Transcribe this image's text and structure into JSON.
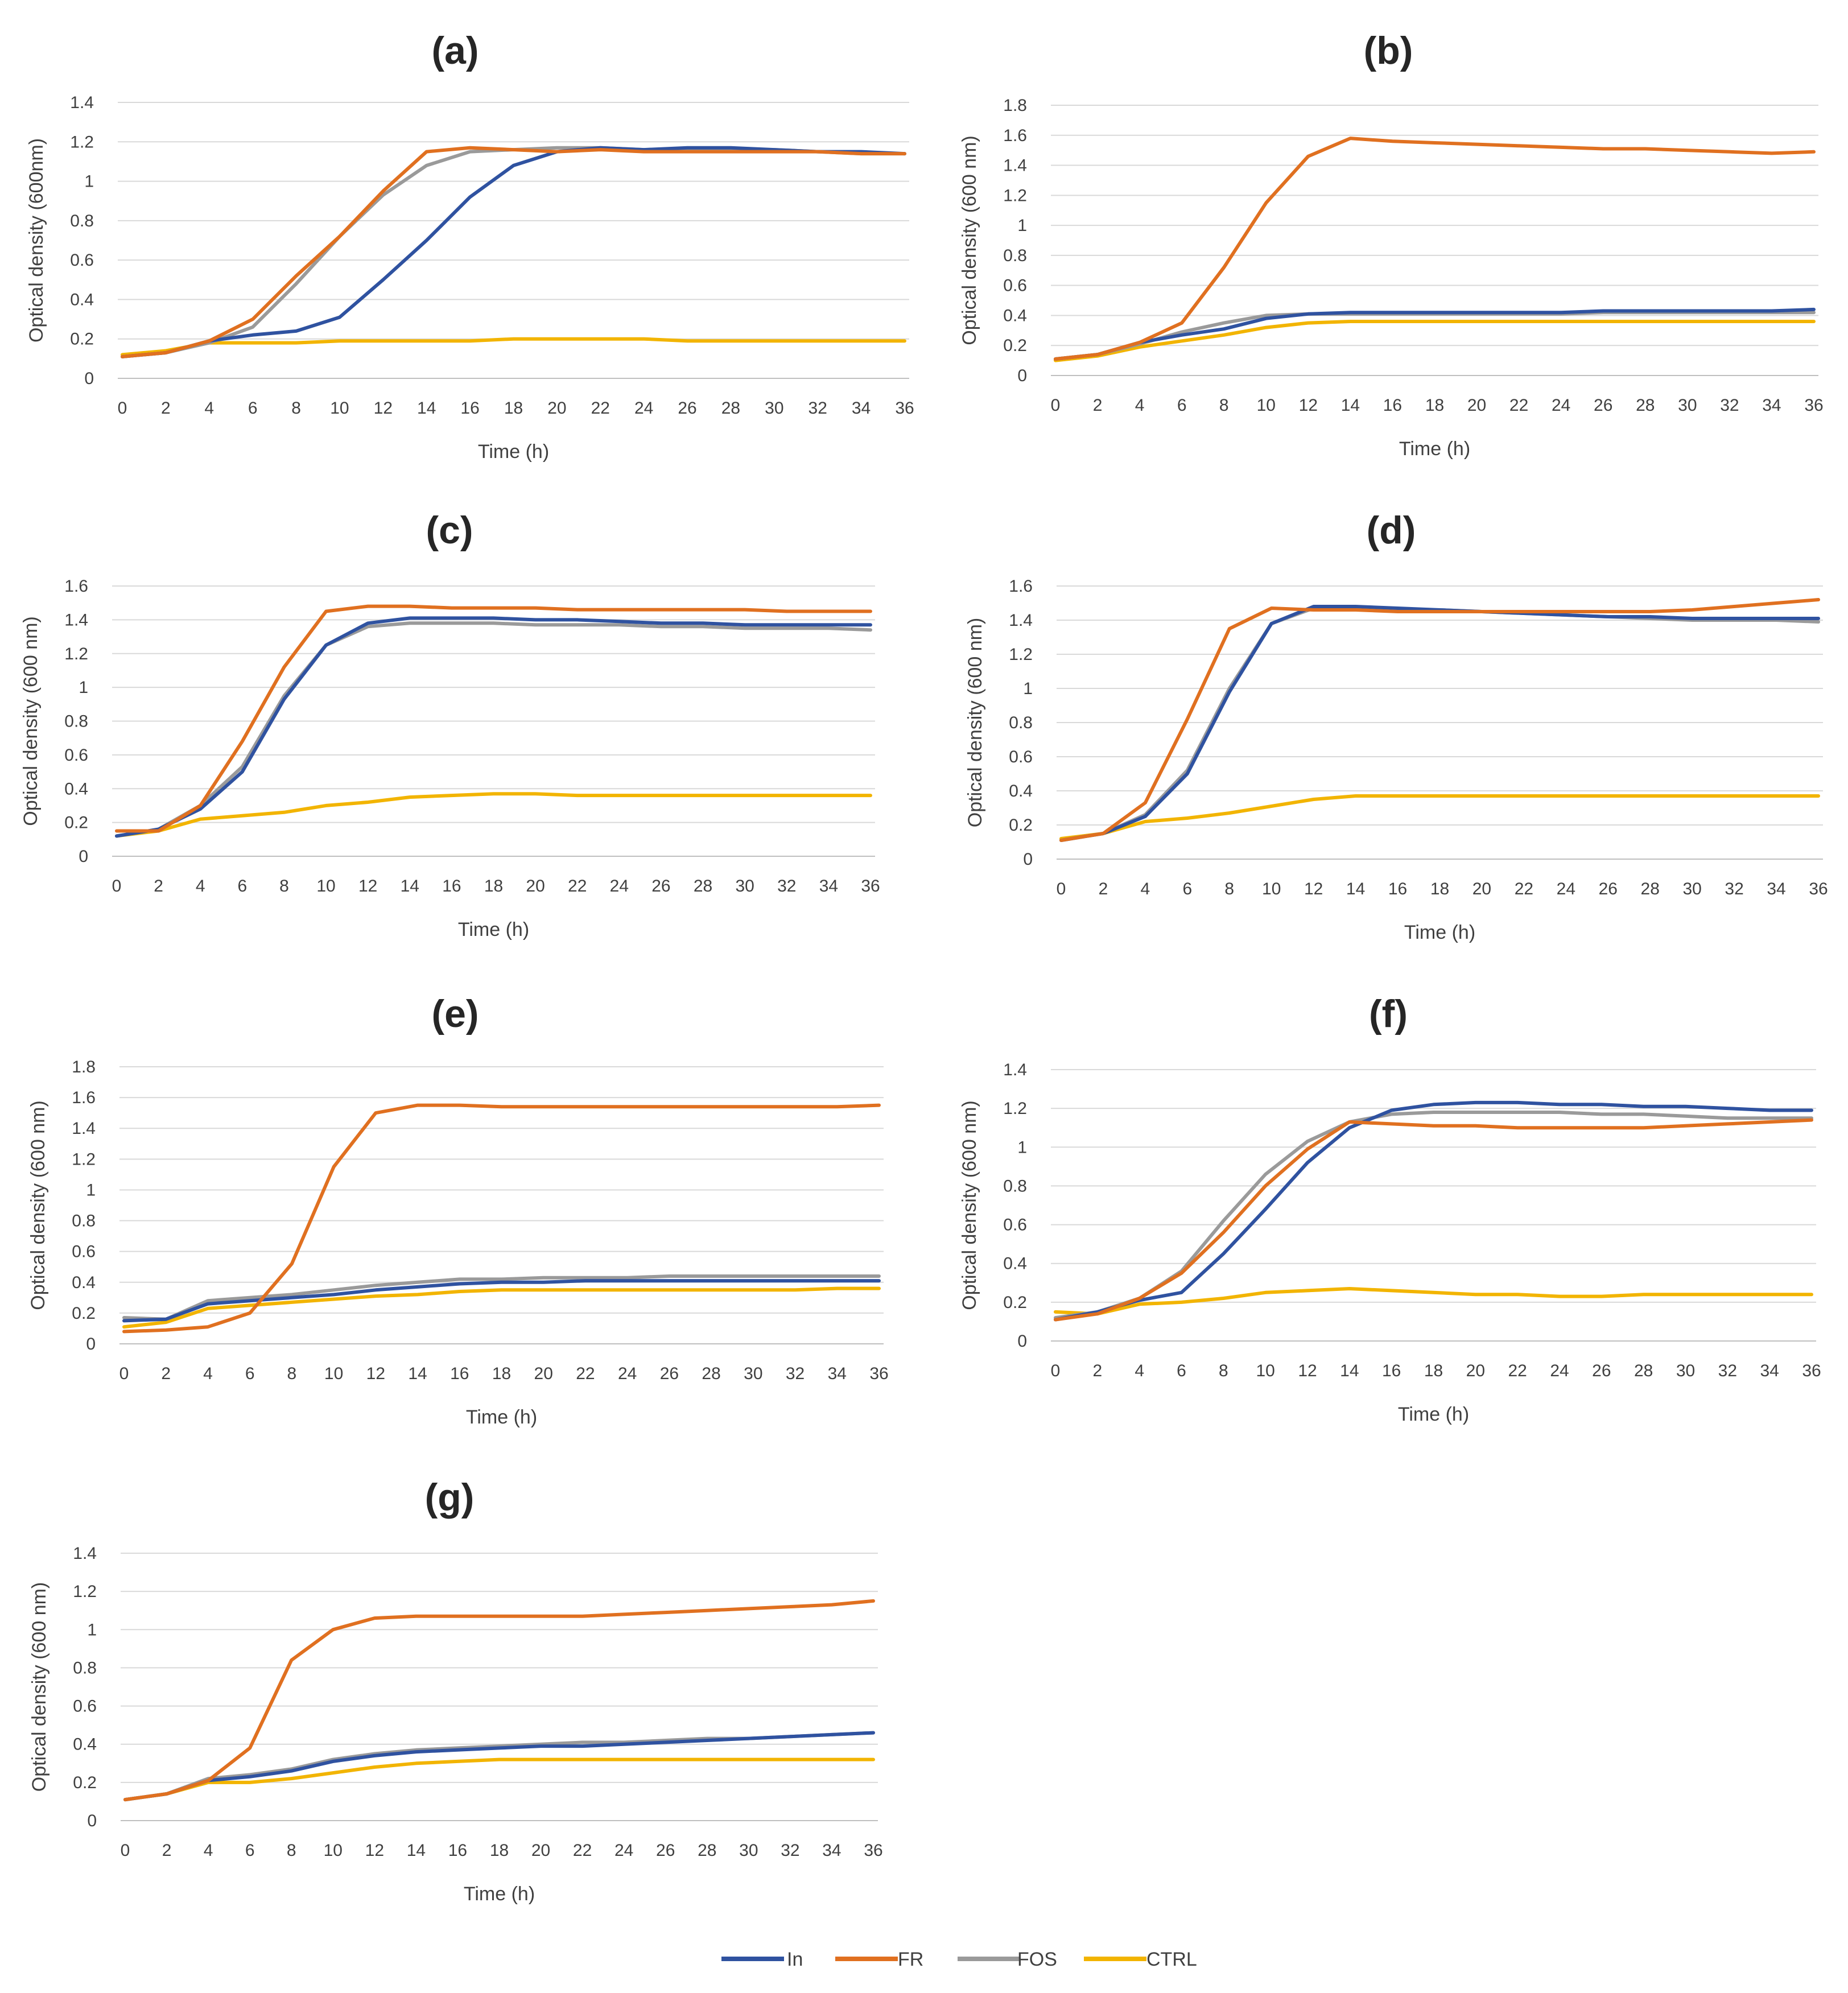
{
  "figure": {
    "legend": [
      {
        "name": "In",
        "color": "#2F52A0"
      },
      {
        "name": "FR",
        "color": "#E07020"
      },
      {
        "name": "FOS",
        "color": "#9A9A9A"
      },
      {
        "name": "CTRL",
        "color": "#F2B400"
      }
    ]
  },
  "chart_data": [
    {
      "type": "line",
      "title": "(a)",
      "xlabel": "Time (h)",
      "ylabel": "Optical density (600nm)",
      "x": [
        0,
        2,
        4,
        6,
        8,
        10,
        12,
        14,
        16,
        18,
        20,
        22,
        24,
        26,
        28,
        30,
        32,
        34,
        36
      ],
      "xticks": [
        "0",
        "2",
        "4",
        "6",
        "8",
        "10",
        "12",
        "14",
        "16",
        "18",
        "20",
        "22",
        "24",
        "26",
        "28",
        "30",
        "32",
        "34",
        "36"
      ],
      "yticks": [
        "0",
        "0.2",
        "0.4",
        "0.6",
        "0.8",
        "1",
        "1.2",
        "1.4"
      ],
      "ylim": [
        0,
        1.4
      ],
      "series": [
        {
          "name": "In",
          "values": [
            0.11,
            0.13,
            0.19,
            0.22,
            0.24,
            0.31,
            0.5,
            0.7,
            0.92,
            1.08,
            1.15,
            1.17,
            1.16,
            1.17,
            1.17,
            1.16,
            1.15,
            1.15,
            1.14
          ]
        },
        {
          "name": "FR",
          "values": [
            0.11,
            0.13,
            0.19,
            0.3,
            0.52,
            0.72,
            0.95,
            1.15,
            1.17,
            1.16,
            1.15,
            1.16,
            1.15,
            1.15,
            1.15,
            1.15,
            1.15,
            1.14,
            1.14
          ]
        },
        {
          "name": "FOS",
          "values": [
            0.11,
            0.13,
            0.18,
            0.26,
            0.48,
            0.72,
            0.93,
            1.08,
            1.15,
            1.16,
            1.17,
            1.17,
            1.16,
            1.16,
            1.16,
            1.16,
            1.15,
            1.14,
            1.14
          ]
        },
        {
          "name": "CTRL",
          "values": [
            0.12,
            0.14,
            0.18,
            0.18,
            0.18,
            0.19,
            0.19,
            0.19,
            0.19,
            0.2,
            0.2,
            0.2,
            0.2,
            0.19,
            0.19,
            0.19,
            0.19,
            0.19,
            0.19
          ]
        }
      ]
    },
    {
      "type": "line",
      "title": "(b)",
      "xlabel": "Time (h)",
      "ylabel": "Optical density (600 nm)",
      "x": [
        0,
        2,
        4,
        6,
        8,
        10,
        12,
        14,
        16,
        18,
        20,
        22,
        24,
        26,
        28,
        30,
        32,
        34,
        36
      ],
      "xticks": [
        "0",
        "2",
        "4",
        "6",
        "8",
        "10",
        "12",
        "14",
        "16",
        "18",
        "20",
        "22",
        "24",
        "26",
        "28",
        "30",
        "32",
        "34",
        "36"
      ],
      "yticks": [
        "0",
        "0.2",
        "0.4",
        "0.6",
        "0.8",
        "1",
        "1.2",
        "1.4",
        "1.6",
        "1.8"
      ],
      "ylim": [
        0,
        1.8
      ],
      "series": [
        {
          "name": "In",
          "values": [
            0.11,
            0.14,
            0.22,
            0.27,
            0.31,
            0.38,
            0.41,
            0.42,
            0.42,
            0.42,
            0.42,
            0.42,
            0.42,
            0.43,
            0.43,
            0.43,
            0.43,
            0.43,
            0.44
          ]
        },
        {
          "name": "FR",
          "values": [
            0.11,
            0.14,
            0.22,
            0.35,
            0.72,
            1.15,
            1.46,
            1.58,
            1.56,
            1.55,
            1.54,
            1.53,
            1.52,
            1.51,
            1.51,
            1.5,
            1.49,
            1.48,
            1.49
          ]
        },
        {
          "name": "FOS",
          "values": [
            0.11,
            0.14,
            0.21,
            0.29,
            0.35,
            0.4,
            0.41,
            0.41,
            0.41,
            0.41,
            0.41,
            0.41,
            0.41,
            0.42,
            0.42,
            0.42,
            0.42,
            0.42,
            0.42
          ]
        },
        {
          "name": "CTRL",
          "values": [
            0.1,
            0.13,
            0.19,
            0.23,
            0.27,
            0.32,
            0.35,
            0.36,
            0.36,
            0.36,
            0.36,
            0.36,
            0.36,
            0.36,
            0.36,
            0.36,
            0.36,
            0.36,
            0.36
          ]
        }
      ]
    },
    {
      "type": "line",
      "title": "(c)",
      "xlabel": "Time (h)",
      "ylabel": "Optical density (600 nm)",
      "x": [
        0,
        2,
        4,
        6,
        8,
        10,
        12,
        14,
        16,
        18,
        20,
        22,
        24,
        26,
        28,
        30,
        32,
        34,
        36
      ],
      "xticks": [
        "0",
        "2",
        "4",
        "6",
        "8",
        "10",
        "12",
        "14",
        "16",
        "18",
        "20",
        "22",
        "24",
        "26",
        "28",
        "30",
        "32",
        "34",
        "36"
      ],
      "yticks": [
        "0",
        "0.2",
        "0.4",
        "0.6",
        "0.8",
        "1",
        "1.2",
        "1.4",
        "1.6"
      ],
      "ylim": [
        0,
        1.6
      ],
      "series": [
        {
          "name": "In",
          "values": [
            0.12,
            0.16,
            0.28,
            0.5,
            0.93,
            1.25,
            1.38,
            1.41,
            1.41,
            1.41,
            1.4,
            1.4,
            1.39,
            1.38,
            1.38,
            1.37,
            1.37,
            1.37,
            1.37
          ]
        },
        {
          "name": "FR",
          "values": [
            0.15,
            0.15,
            0.3,
            0.68,
            1.12,
            1.45,
            1.48,
            1.48,
            1.47,
            1.47,
            1.47,
            1.46,
            1.46,
            1.46,
            1.46,
            1.46,
            1.45,
            1.45,
            1.45
          ]
        },
        {
          "name": "FOS",
          "values": [
            0.12,
            0.16,
            0.3,
            0.53,
            0.95,
            1.25,
            1.36,
            1.38,
            1.38,
            1.38,
            1.37,
            1.37,
            1.37,
            1.36,
            1.36,
            1.35,
            1.35,
            1.35,
            1.34
          ]
        },
        {
          "name": "CTRL",
          "values": [
            0.12,
            0.15,
            0.22,
            0.24,
            0.26,
            0.3,
            0.32,
            0.35,
            0.36,
            0.37,
            0.37,
            0.36,
            0.36,
            0.36,
            0.36,
            0.36,
            0.36,
            0.36,
            0.36
          ]
        }
      ]
    },
    {
      "type": "line",
      "title": "(d)",
      "xlabel": "Time (h)",
      "ylabel": "Optical density (600 nm)",
      "x": [
        0,
        2,
        4,
        6,
        8,
        10,
        12,
        14,
        16,
        18,
        20,
        22,
        24,
        26,
        28,
        30,
        32,
        34,
        36
      ],
      "xticks": [
        "0",
        "2",
        "4",
        "6",
        "8",
        "10",
        "12",
        "14",
        "16",
        "18",
        "20",
        "22",
        "24",
        "26",
        "28",
        "30",
        "32",
        "34",
        "36"
      ],
      "yticks": [
        "0",
        "0.2",
        "0.4",
        "0.6",
        "0.8",
        "1",
        "1.2",
        "1.4",
        "1.6"
      ],
      "ylim": [
        0,
        1.6
      ],
      "series": [
        {
          "name": "In",
          "values": [
            0.11,
            0.15,
            0.25,
            0.5,
            0.98,
            1.38,
            1.48,
            1.48,
            1.47,
            1.46,
            1.45,
            1.44,
            1.43,
            1.42,
            1.42,
            1.41,
            1.41,
            1.41,
            1.41
          ]
        },
        {
          "name": "FR",
          "values": [
            0.11,
            0.15,
            0.33,
            0.82,
            1.35,
            1.47,
            1.46,
            1.46,
            1.45,
            1.45,
            1.45,
            1.45,
            1.45,
            1.45,
            1.45,
            1.46,
            1.48,
            1.5,
            1.52
          ]
        },
        {
          "name": "FOS",
          "values": [
            0.11,
            0.15,
            0.26,
            0.52,
            1.0,
            1.38,
            1.47,
            1.47,
            1.46,
            1.46,
            1.45,
            1.44,
            1.43,
            1.42,
            1.41,
            1.4,
            1.4,
            1.4,
            1.39
          ]
        },
        {
          "name": "CTRL",
          "values": [
            0.12,
            0.15,
            0.22,
            0.24,
            0.27,
            0.31,
            0.35,
            0.37,
            0.37,
            0.37,
            0.37,
            0.37,
            0.37,
            0.37,
            0.37,
            0.37,
            0.37,
            0.37,
            0.37
          ]
        }
      ]
    },
    {
      "type": "line",
      "title": "(e)",
      "xlabel": "Time (h)",
      "ylabel": "Optical density (600 nm)",
      "x": [
        0,
        2,
        4,
        6,
        8,
        10,
        12,
        14,
        16,
        18,
        20,
        22,
        24,
        26,
        28,
        30,
        32,
        34,
        36
      ],
      "xticks": [
        "0",
        "2",
        "4",
        "6",
        "8",
        "10",
        "12",
        "14",
        "16",
        "18",
        "20",
        "22",
        "24",
        "26",
        "28",
        "30",
        "32",
        "34",
        "36"
      ],
      "yticks": [
        "0",
        "0.2",
        "0.4",
        "0.6",
        "0.8",
        "1",
        "1.2",
        "1.4",
        "1.6",
        "1.8"
      ],
      "ylim": [
        0,
        1.8
      ],
      "series": [
        {
          "name": "In",
          "values": [
            0.15,
            0.16,
            0.26,
            0.28,
            0.3,
            0.32,
            0.35,
            0.37,
            0.39,
            0.4,
            0.4,
            0.41,
            0.41,
            0.41,
            0.41,
            0.41,
            0.41,
            0.41,
            0.41
          ]
        },
        {
          "name": "FR",
          "values": [
            0.08,
            0.09,
            0.11,
            0.2,
            0.52,
            1.15,
            1.5,
            1.55,
            1.55,
            1.54,
            1.54,
            1.54,
            1.54,
            1.54,
            1.54,
            1.54,
            1.54,
            1.54,
            1.55
          ]
        },
        {
          "name": "FOS",
          "values": [
            0.17,
            0.16,
            0.28,
            0.3,
            0.32,
            0.35,
            0.38,
            0.4,
            0.42,
            0.42,
            0.43,
            0.43,
            0.43,
            0.44,
            0.44,
            0.44,
            0.44,
            0.44,
            0.44
          ]
        },
        {
          "name": "CTRL",
          "values": [
            0.11,
            0.14,
            0.23,
            0.25,
            0.27,
            0.29,
            0.31,
            0.32,
            0.34,
            0.35,
            0.35,
            0.35,
            0.35,
            0.35,
            0.35,
            0.35,
            0.35,
            0.36,
            0.36
          ]
        }
      ]
    },
    {
      "type": "line",
      "title": "(f)",
      "xlabel": "Time (h)",
      "ylabel": "Optical density (600 nm)",
      "x": [
        0,
        2,
        4,
        6,
        8,
        10,
        12,
        14,
        16,
        18,
        20,
        22,
        24,
        26,
        28,
        30,
        32,
        34,
        36
      ],
      "xticks": [
        "0",
        "2",
        "4",
        "6",
        "8",
        "10",
        "12",
        "14",
        "16",
        "18",
        "20",
        "22",
        "24",
        "26",
        "28",
        "30",
        "32",
        "34",
        "36"
      ],
      "yticks": [
        "0",
        "0.2",
        "0.4",
        "0.6",
        "0.8",
        "1",
        "1.2",
        "1.4"
      ],
      "ylim": [
        0,
        1.4
      ],
      "series": [
        {
          "name": "In",
          "values": [
            0.11,
            0.15,
            0.21,
            0.25,
            0.45,
            0.68,
            0.92,
            1.1,
            1.19,
            1.22,
            1.23,
            1.23,
            1.22,
            1.22,
            1.21,
            1.21,
            1.2,
            1.19,
            1.19
          ]
        },
        {
          "name": "FR",
          "values": [
            0.11,
            0.14,
            0.22,
            0.35,
            0.56,
            0.8,
            0.99,
            1.13,
            1.12,
            1.11,
            1.11,
            1.1,
            1.1,
            1.1,
            1.1,
            1.11,
            1.12,
            1.13,
            1.14
          ]
        },
        {
          "name": "FOS",
          "values": [
            0.12,
            0.15,
            0.22,
            0.36,
            0.62,
            0.86,
            1.03,
            1.13,
            1.17,
            1.18,
            1.18,
            1.18,
            1.18,
            1.17,
            1.17,
            1.16,
            1.15,
            1.15,
            1.15
          ]
        },
        {
          "name": "CTRL",
          "values": [
            0.15,
            0.14,
            0.19,
            0.2,
            0.22,
            0.25,
            0.26,
            0.27,
            0.26,
            0.25,
            0.24,
            0.24,
            0.23,
            0.23,
            0.24,
            0.24,
            0.24,
            0.24,
            0.24
          ]
        }
      ]
    },
    {
      "type": "line",
      "title": "(g)",
      "xlabel": "Time (h)",
      "ylabel": "Optical density (600 nm)",
      "x": [
        0,
        2,
        4,
        6,
        8,
        10,
        12,
        14,
        16,
        18,
        20,
        22,
        24,
        26,
        28,
        30,
        32,
        34,
        36
      ],
      "xticks": [
        "0",
        "2",
        "4",
        "6",
        "8",
        "10",
        "12",
        "14",
        "16",
        "18",
        "20",
        "22",
        "24",
        "26",
        "28",
        "30",
        "32",
        "34",
        "36"
      ],
      "yticks": [
        "0",
        "0.2",
        "0.4",
        "0.6",
        "0.8",
        "1",
        "1.2",
        "1.4"
      ],
      "ylim": [
        0,
        1.4
      ],
      "series": [
        {
          "name": "In",
          "values": [
            0.11,
            0.14,
            0.21,
            0.23,
            0.26,
            0.31,
            0.34,
            0.36,
            0.37,
            0.38,
            0.39,
            0.39,
            0.4,
            0.41,
            0.42,
            0.43,
            0.44,
            0.45,
            0.46
          ]
        },
        {
          "name": "FR",
          "values": [
            0.11,
            0.14,
            0.21,
            0.38,
            0.84,
            1.0,
            1.06,
            1.07,
            1.07,
            1.07,
            1.07,
            1.07,
            1.08,
            1.09,
            1.1,
            1.11,
            1.12,
            1.13,
            1.15
          ]
        },
        {
          "name": "FOS",
          "values": [
            0.11,
            0.14,
            0.22,
            0.24,
            0.27,
            0.32,
            0.35,
            0.37,
            0.38,
            0.39,
            0.4,
            0.41,
            0.41,
            0.42,
            0.43,
            0.43,
            0.44,
            0.45,
            0.46
          ]
        },
        {
          "name": "CTRL",
          "values": [
            0.11,
            0.14,
            0.2,
            0.2,
            0.22,
            0.25,
            0.28,
            0.3,
            0.31,
            0.32,
            0.32,
            0.32,
            0.32,
            0.32,
            0.32,
            0.32,
            0.32,
            0.32,
            0.32
          ]
        }
      ]
    }
  ]
}
